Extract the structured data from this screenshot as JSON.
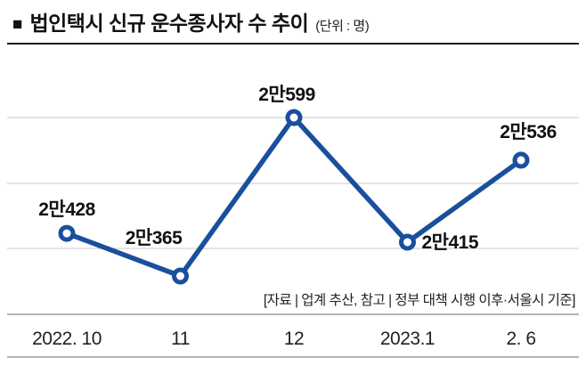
{
  "header": {
    "bullet": "■",
    "title": "법인택시 신규 운수종사자 수 추이",
    "unit": "(단위 : 명)"
  },
  "source_note": "[자료 | 업계 추산, 참고 | 정부 대책 시행 이후·서울시 기준]",
  "chart_data": {
    "type": "line",
    "title": "법인택시 신규 운수종사자 수 추이",
    "unit": "명",
    "categories": [
      "2022. 10",
      "11",
      "12",
      "2023.1",
      "2. 6"
    ],
    "values": [
      20428,
      20365,
      20599,
      20415,
      20536
    ],
    "point_labels": [
      "2만428",
      "2만365",
      "2만599",
      "2만415",
      "2만536"
    ],
    "ylim": [
      20300,
      20650
    ],
    "grid": "horizontal",
    "legend": "none",
    "line_color": "#1a4f9e",
    "marker_style": "donut",
    "grid_color": "#c8c8c8",
    "axis_color": "#9a9a9a",
    "label_color": "#111111",
    "tick_color": "#222222"
  }
}
